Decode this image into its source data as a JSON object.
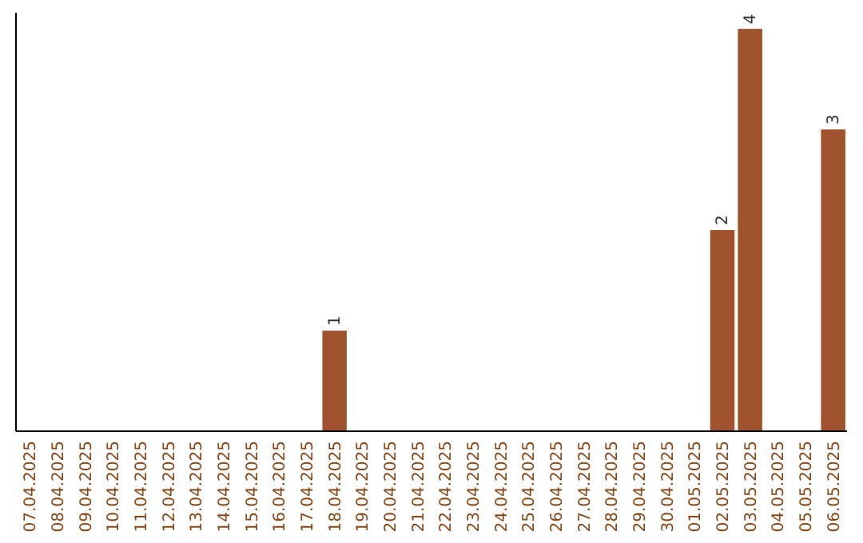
{
  "chart_data": {
    "type": "bar",
    "categories": [
      "07.04.2025",
      "08.04.2025",
      "09.04.2025",
      "10.04.2025",
      "11.04.2025",
      "12.04.2025",
      "13.04.2025",
      "14.04.2025",
      "15.04.2025",
      "16.04.2025",
      "17.04.2025",
      "18.04.2025",
      "19.04.2025",
      "20.04.2025",
      "21.04.2025",
      "22.04.2025",
      "23.04.2025",
      "24.04.2025",
      "25.04.2025",
      "26.04.2025",
      "27.04.2025",
      "28.04.2025",
      "29.04.2025",
      "30.04.2025",
      "01.05.2025",
      "02.05.2025",
      "03.05.2025",
      "04.05.2025",
      "05.05.2025",
      "06.05.2025"
    ],
    "values": [
      0,
      0,
      0,
      0,
      0,
      0,
      0,
      0,
      0,
      0,
      0,
      1,
      0,
      0,
      0,
      0,
      0,
      0,
      0,
      0,
      0,
      0,
      0,
      0,
      0,
      2,
      4,
      0,
      0,
      3
    ],
    "value_labels": [
      null,
      null,
      null,
      null,
      null,
      null,
      null,
      null,
      null,
      null,
      null,
      "1",
      null,
      null,
      null,
      null,
      null,
      null,
      null,
      null,
      null,
      null,
      null,
      null,
      null,
      "2",
      "4",
      null,
      null,
      "3"
    ],
    "color": "#a0522d"
  }
}
